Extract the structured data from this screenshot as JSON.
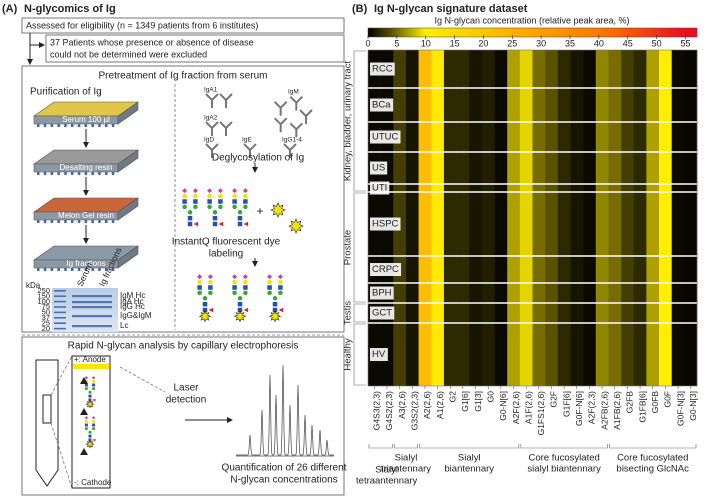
{
  "panel_a": {
    "label": "(A)",
    "title": "N-glycomics of Ig",
    "eligibility": "Assessed for eligibility (n = 1349 patients from 6 institutes)",
    "excluded": [
      "37 Patients whose presence or absence of disease",
      "could not be determined were excluded"
    ],
    "pretreatment": "Pretreatment of Ig fraction from serum",
    "purification": "Purification of Ig",
    "plates": [
      "Serum 100 µl",
      "Desalting resin",
      "Melon Gel resin",
      "Ig fractions"
    ],
    "antibodies": [
      "IgA1",
      "IgM",
      "IgA2",
      "IgD",
      "IgE",
      "IgG1-4"
    ],
    "deglycosylation": "Deglycosylation of Ig",
    "dye": [
      "InstantQ fluorescent dye",
      "labeling"
    ],
    "gel": {
      "unit": "kDa",
      "lanes": [
        "Serum",
        "Ig fractions"
      ],
      "markers": [
        "250",
        "150",
        "100",
        "75",
        "50",
        "37",
        "25",
        "20"
      ],
      "bands": [
        "IgM Hc",
        "IgA Hc",
        "IgG Hc",
        "IgG&IgM",
        "Lc"
      ]
    },
    "ce_title": "Rapid N-glycan analysis by capillary electrophoresis",
    "anode": "+: Anode",
    "cathode": "-: Cathode",
    "laser": [
      "Laser",
      "detection"
    ],
    "quantification": [
      "Quantification of 26 different",
      "N-glycan concentrations"
    ]
  },
  "panel_b": {
    "label": "(B)",
    "title": "Ig N-glycan signature dataset",
    "colorbar": {
      "title": "Ig N-glycan concentration (relative peak area, %)",
      "lim": [
        0,
        57
      ],
      "ticks": [
        0,
        5,
        10,
        15,
        20,
        25,
        30,
        35,
        40,
        45,
        50,
        55
      ],
      "colormap": [
        {
          "value": 0,
          "color": "#000000"
        },
        {
          "value": 4,
          "color": "#5a5200"
        },
        {
          "value": 10,
          "color": "#ffee00"
        },
        {
          "value": 25,
          "color": "#ffb000"
        },
        {
          "value": 40,
          "color": "#ff7a00"
        },
        {
          "value": 55,
          "color": "#e8101e"
        }
      ]
    },
    "row_groups": [
      {
        "name": "Kidney, bladder, urinary tract",
        "rows": [
          "RCC",
          "BCa",
          "UTUC",
          "US",
          "UTI"
        ]
      },
      {
        "name": "Prostate",
        "rows": [
          "HSPC",
          "CRPC",
          "BPH"
        ]
      },
      {
        "name": "Testis",
        "rows": [
          "GCT"
        ]
      },
      {
        "name": "Healthy",
        "rows": [
          "HV"
        ]
      }
    ],
    "columns": [
      "G4S3(2,3)",
      "G4S2(2,3)",
      "A3(2,6)",
      "G3S2(2,3)",
      "A2(2,6)",
      "A1(2,6)",
      "G2",
      "G1[6]",
      "G1[3]",
      "G0",
      "G0-N[6]",
      "A2F(2,6)",
      "A1F(2,6)",
      "G1FS1(2,6)",
      "G2F",
      "G1F[6]",
      "G0F-N[6]",
      "A2F(2,3)",
      "A2FB(2,6)",
      "A1FB(2,6)",
      "G2FB",
      "G1FB[6]",
      "G0FB",
      "G0F",
      "G0F-N[3]",
      "G0-N[3]"
    ],
    "values": [
      0.5,
      0.5,
      3,
      1,
      22,
      11,
      2,
      2,
      1,
      1.5,
      0.5,
      7,
      9,
      5,
      4,
      2,
      1,
      0.5,
      6,
      5,
      3,
      2,
      7,
      10,
      0.5,
      0.3
    ],
    "column_groups": [
      [
        "Sialyl",
        "tetraantennary"
      ],
      [
        "Sialyl",
        "triantennary"
      ],
      [
        "Sialyl",
        "biantennary"
      ],
      [
        "Core fucosylated",
        "sialyl biantennary"
      ],
      [
        "Core fucosylated",
        "bisecting GlcNAc"
      ]
    ]
  }
}
